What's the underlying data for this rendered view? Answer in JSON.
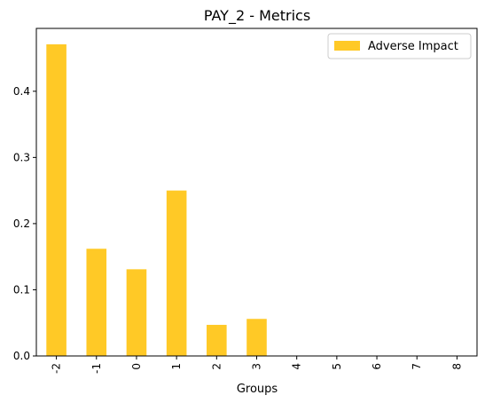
{
  "chart_data": {
    "type": "bar",
    "title": "PAY_2 - Metrics",
    "xlabel": "Groups",
    "ylabel": "",
    "categories": [
      "-2",
      "-1",
      "0",
      "1",
      "2",
      "3",
      "4",
      "5",
      "6",
      "7",
      "8"
    ],
    "series": [
      {
        "name": "Adverse Impact",
        "values": [
          0.471,
          0.162,
          0.131,
          0.25,
          0.047,
          0.056,
          0,
          0,
          0,
          0,
          0
        ]
      }
    ],
    "ylim": [
      0,
      0.495
    ],
    "yticks": [
      0.0,
      0.1,
      0.2,
      0.3,
      0.4
    ],
    "ytick_labels": [
      "0.0",
      "0.1",
      "0.2",
      "0.3",
      "0.4"
    ],
    "grid": false,
    "legend_position": "top-right",
    "colors": {
      "bar": "#ffc926"
    }
  }
}
